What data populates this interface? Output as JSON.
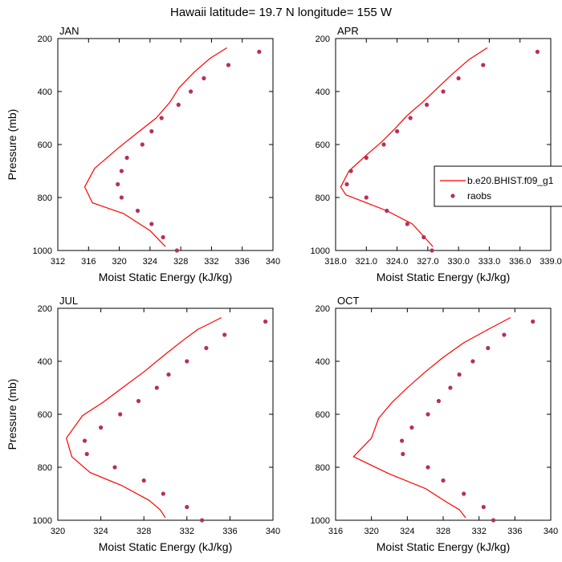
{
  "title": "Hawaii  latitude= 19.7 N longitude= 155 W",
  "colors": {
    "model": "#ff0000",
    "obs": "#b5305c",
    "axis": "#000000"
  },
  "legend": {
    "model": "b.e20.BHIST.f09_g1",
    "obs": "raobs"
  },
  "chart_data": [
    {
      "type": "line",
      "panel": "JAN",
      "xlabel": "Moist Static Energy (kJ/kg)",
      "ylabel": "Pressure (mb)",
      "xlim": [
        312,
        340
      ],
      "ylim": [
        1000,
        200
      ],
      "xticks": [
        "312",
        "316",
        "320",
        "324",
        "328",
        "332",
        "336",
        "340"
      ],
      "yticks": [
        "200",
        "400",
        "600",
        "800",
        "1000"
      ],
      "series": [
        {
          "kind": "line",
          "x": [
            334.0,
            331.8,
            329.8,
            327.8,
            326.6,
            324.8,
            322.4,
            320.0,
            318.0,
            316.8,
            315.5,
            316.5,
            320.5,
            324.0,
            326.0
          ],
          "y": [
            235,
            275,
            325,
            385,
            440,
            500,
            555,
            610,
            660,
            690,
            760,
            820,
            860,
            925,
            985
          ]
        },
        {
          "kind": "points",
          "x": [
            338.2,
            334.2,
            331.0,
            329.3,
            327.7,
            325.5,
            324.2,
            323.0,
            321.0,
            320.3,
            319.8,
            320.3,
            322.4,
            324.2,
            325.7,
            327.5
          ],
          "y": [
            250,
            300,
            350,
            400,
            450,
            500,
            550,
            600,
            650,
            700,
            750,
            800,
            850,
            900,
            950,
            1000
          ]
        }
      ]
    },
    {
      "type": "line",
      "panel": "APR",
      "xlabel": "Moist Static Energy (kJ/kg)",
      "ylabel": "",
      "xlim": [
        318,
        339
      ],
      "ylim": [
        1000,
        200
      ],
      "xticks": [
        "318.0",
        "321.0",
        "324.0",
        "327.0",
        "330.0",
        "333.0",
        "336.0",
        "339.0"
      ],
      "yticks": [
        "200",
        "400",
        "600",
        "800",
        "1000"
      ],
      "series": [
        {
          "kind": "line",
          "x": [
            332.8,
            331.0,
            329.5,
            328.0,
            326.5,
            325.0,
            323.8,
            322.5,
            321.0,
            319.3,
            318.5,
            319.0,
            321.0,
            323.0,
            325.5,
            327.5
          ],
          "y": [
            235,
            280,
            330,
            385,
            440,
            490,
            540,
            590,
            640,
            700,
            760,
            790,
            820,
            850,
            900,
            985
          ]
        },
        {
          "kind": "points",
          "x": [
            337.7,
            332.4,
            330.0,
            328.5,
            326.9,
            325.3,
            324.0,
            322.7,
            321.0,
            319.5,
            319.1,
            321.0,
            323.0,
            325.0,
            326.6,
            327.4
          ],
          "y": [
            250,
            300,
            350,
            400,
            450,
            500,
            550,
            600,
            650,
            700,
            750,
            800,
            850,
            900,
            950,
            1000
          ]
        }
      ]
    },
    {
      "type": "line",
      "panel": "JUL",
      "xlabel": "Moist Static Energy (kJ/kg)",
      "ylabel": "Pressure (mb)",
      "xlim": [
        320,
        340
      ],
      "ylim": [
        1000,
        200
      ],
      "xticks": [
        "320",
        "324",
        "328",
        "332",
        "336",
        "340"
      ],
      "yticks": [
        "200",
        "400",
        "600",
        "800",
        "1000"
      ],
      "series": [
        {
          "kind": "line",
          "x": [
            335.2,
            333.0,
            331.5,
            329.8,
            328.0,
            326.0,
            324.2,
            322.3,
            320.8,
            321.3,
            323.0,
            326.0,
            328.5,
            329.5,
            330.0
          ],
          "y": [
            235,
            280,
            325,
            380,
            440,
            500,
            555,
            605,
            690,
            760,
            820,
            870,
            925,
            960,
            990
          ]
        },
        {
          "kind": "points",
          "x": [
            339.3,
            335.5,
            333.8,
            332.0,
            330.3,
            329.2,
            327.5,
            325.8,
            324.0,
            322.5,
            322.7,
            325.3,
            328.0,
            329.8,
            332.0,
            333.4
          ],
          "y": [
            250,
            300,
            350,
            400,
            450,
            500,
            550,
            600,
            650,
            700,
            750,
            800,
            850,
            900,
            950,
            1000
          ]
        }
      ]
    },
    {
      "type": "line",
      "panel": "OCT",
      "xlabel": "Moist Static Energy (kJ/kg)",
      "ylabel": "",
      "xlim": [
        316,
        340
      ],
      "ylim": [
        1000,
        200
      ],
      "xticks": [
        "316",
        "320",
        "324",
        "328",
        "332",
        "336",
        "340"
      ],
      "yticks": [
        "200",
        "400",
        "600",
        "800",
        "1000"
      ],
      "series": [
        {
          "kind": "line",
          "x": [
            335.5,
            333.0,
            330.3,
            328.0,
            326.0,
            324.0,
            322.3,
            320.8,
            320.0,
            318.0,
            322.0,
            326.0,
            328.3,
            329.8,
            330.5
          ],
          "y": [
            235,
            280,
            330,
            385,
            440,
            500,
            555,
            615,
            690,
            760,
            825,
            880,
            930,
            960,
            990
          ]
        },
        {
          "kind": "points",
          "x": [
            338.0,
            334.8,
            333.0,
            331.3,
            329.8,
            328.8,
            327.5,
            326.3,
            324.5,
            323.4,
            323.5,
            326.3,
            328.0,
            330.3,
            332.5,
            333.6
          ],
          "y": [
            250,
            300,
            350,
            400,
            450,
            500,
            550,
            600,
            650,
            700,
            750,
            800,
            850,
            900,
            950,
            1000
          ]
        }
      ]
    }
  ]
}
